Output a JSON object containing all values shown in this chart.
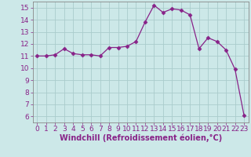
{
  "x": [
    0,
    1,
    2,
    3,
    4,
    5,
    6,
    7,
    8,
    9,
    10,
    11,
    12,
    13,
    14,
    15,
    16,
    17,
    18,
    19,
    20,
    21,
    22,
    23
  ],
  "y": [
    11.0,
    11.0,
    11.1,
    11.6,
    11.2,
    11.1,
    11.1,
    11.0,
    11.7,
    11.7,
    11.8,
    12.2,
    13.8,
    15.2,
    14.6,
    14.9,
    14.8,
    14.4,
    11.6,
    12.5,
    12.2,
    11.5,
    9.9,
    6.1
  ],
  "line_color": "#882288",
  "marker": "D",
  "marker_size": 2.5,
  "background_color": "#cce8e8",
  "grid_color": "#aacccc",
  "xlabel": "Windchill (Refroidissement éolien,°C)",
  "ylim": [
    5.5,
    15.5
  ],
  "xlim": [
    -0.5,
    23.5
  ],
  "yticks": [
    6,
    7,
    8,
    9,
    10,
    11,
    12,
    13,
    14,
    15
  ],
  "xticks": [
    0,
    1,
    2,
    3,
    4,
    5,
    6,
    7,
    8,
    9,
    10,
    11,
    12,
    13,
    14,
    15,
    16,
    17,
    18,
    19,
    20,
    21,
    22,
    23
  ],
  "tick_fontsize": 6.5,
  "xlabel_fontsize": 7,
  "axis_color": "#882288",
  "spine_color": "#888888"
}
